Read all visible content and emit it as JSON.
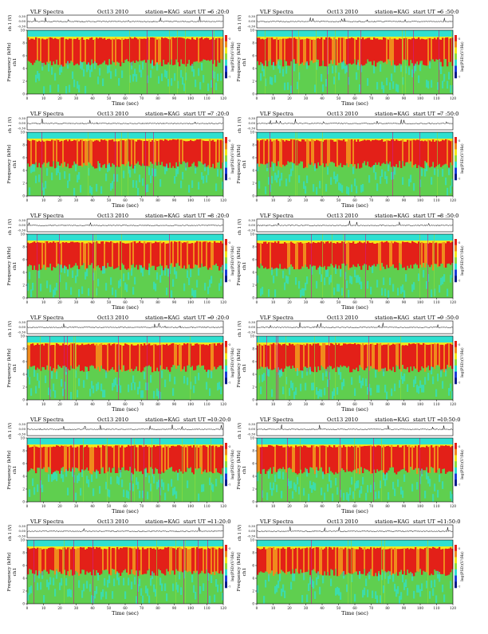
{
  "page": {
    "header_label": "VLF Spectra",
    "station_label": "station=KAG",
    "start_label": "start UT =",
    "voltage_axis_label": "ch 1 (V)",
    "freq_axis_label_line1": "ch1",
    "freq_axis_label_line2": "Frequency (kHz)",
    "time_axis_label": "Time (sec)",
    "colorbar_label": "log(PSD)(V²/Hz)",
    "voltage_ticks": [
      "0.30",
      "0.00",
      "-0.30"
    ],
    "freq_ticks": [
      "0",
      "2",
      "4",
      "6",
      "8",
      "10"
    ],
    "time_ticks": [
      "0",
      "10",
      "20",
      "30",
      "40",
      "50",
      "60",
      "70",
      "80",
      "90",
      "100",
      "110",
      "120"
    ],
    "colorbar_ticks": [
      "-5",
      "-7"
    ]
  },
  "chart_data": [
    {
      "type": "heatmap",
      "date": "Oct13 2010",
      "start_ut": "6 :20:0",
      "xlabel": "Time (sec)",
      "ylabel": "Frequency (kHz)",
      "xlim": [
        0,
        120
      ],
      "ylim": [
        0,
        10
      ],
      "upper_band_khz": [
        9.0,
        10.0
      ],
      "intense_band_khz": [
        5.5,
        8.5
      ]
    },
    {
      "type": "heatmap",
      "date": "Oct13 2010",
      "start_ut": "6 :50:0",
      "xlabel": "Time (sec)",
      "ylabel": "Frequency (kHz)",
      "xlim": [
        0,
        120
      ],
      "ylim": [
        0,
        10
      ],
      "upper_band_khz": [
        9.0,
        10.0
      ],
      "intense_band_khz": [
        5.5,
        8.5
      ]
    },
    {
      "type": "heatmap",
      "date": "Oct13 2010",
      "start_ut": "7 :20:0",
      "xlabel": "Time (sec)",
      "ylabel": "Frequency (kHz)",
      "xlim": [
        0,
        120
      ],
      "ylim": [
        0,
        10
      ],
      "upper_band_khz": [
        9.0,
        10.0
      ],
      "intense_band_khz": [
        5.5,
        8.5
      ]
    },
    {
      "type": "heatmap",
      "date": "Oct13 2010",
      "start_ut": "7 :50:0",
      "xlabel": "Time (sec)",
      "ylabel": "Frequency (kHz)",
      "xlim": [
        0,
        120
      ],
      "ylim": [
        0,
        10
      ],
      "upper_band_khz": [
        9.0,
        10.0
      ],
      "intense_band_khz": [
        5.5,
        8.5
      ]
    },
    {
      "type": "heatmap",
      "date": "Oct13 2010",
      "start_ut": "8 :20:0",
      "xlabel": "Time (sec)",
      "ylabel": "Frequency (kHz)",
      "xlim": [
        0,
        120
      ],
      "ylim": [
        0,
        10
      ],
      "upper_band_khz": [
        9.0,
        10.0
      ],
      "intense_band_khz": [
        5.5,
        8.5
      ]
    },
    {
      "type": "heatmap",
      "date": "Oct13 2010",
      "start_ut": "8 :50:0",
      "xlabel": "Time (sec)",
      "ylabel": "Frequency (kHz)",
      "xlim": [
        0,
        120
      ],
      "ylim": [
        0,
        10
      ],
      "upper_band_khz": [
        9.0,
        10.0
      ],
      "intense_band_khz": [
        5.5,
        8.5
      ]
    },
    {
      "type": "heatmap",
      "date": "Oct13 2010",
      "start_ut": "9 :20:0",
      "xlabel": "Time (sec)",
      "ylabel": "Frequency (kHz)",
      "xlim": [
        0,
        120
      ],
      "ylim": [
        0,
        10
      ],
      "upper_band_khz": [
        9.0,
        10.0
      ],
      "intense_band_khz": [
        5.5,
        8.5
      ]
    },
    {
      "type": "heatmap",
      "date": "Oct13 2010",
      "start_ut": "9 :50:0",
      "xlabel": "Time (sec)",
      "ylabel": "Frequency (kHz)",
      "xlim": [
        0,
        120
      ],
      "ylim": [
        0,
        10
      ],
      "upper_band_khz": [
        9.0,
        10.0
      ],
      "intense_band_khz": [
        5.5,
        8.5
      ]
    },
    {
      "type": "heatmap",
      "date": "Oct13 2010",
      "start_ut": "10:20:0",
      "xlabel": "Time (sec)",
      "ylabel": "Frequency (kHz)",
      "xlim": [
        0,
        120
      ],
      "ylim": [
        0,
        10
      ],
      "upper_band_khz": [
        9.0,
        10.0
      ],
      "intense_band_khz": [
        5.5,
        8.5
      ]
    },
    {
      "type": "heatmap",
      "date": "Oct13 2010",
      "start_ut": "10:50:0",
      "xlabel": "Time (sec)",
      "ylabel": "Frequency (kHz)",
      "xlim": [
        0,
        120
      ],
      "ylim": [
        0,
        10
      ],
      "upper_band_khz": [
        9.0,
        10.0
      ],
      "intense_band_khz": [
        5.5,
        8.5
      ]
    },
    {
      "type": "heatmap",
      "date": "Oct13 2010",
      "start_ut": "11:20:0",
      "xlabel": "Time (sec)",
      "ylabel": "Frequency (kHz)",
      "xlim": [
        0,
        120
      ],
      "ylim": [
        0,
        10
      ],
      "upper_band_khz": [
        9.0,
        10.0
      ],
      "intense_band_khz": [
        5.5,
        8.5
      ]
    },
    {
      "type": "heatmap",
      "date": "Oct13 2010",
      "start_ut": "11:50:0",
      "xlabel": "Time (sec)",
      "ylabel": "Frequency (kHz)",
      "xlim": [
        0,
        120
      ],
      "ylim": [
        0,
        10
      ],
      "upper_band_khz": [
        9.0,
        10.0
      ],
      "intense_band_khz": [
        5.5,
        8.5
      ]
    }
  ],
  "colors": {
    "red": "#e32018",
    "orange": "#f08a1c",
    "yellow": "#f2e81a",
    "green": "#5fcf4f",
    "lightgreen": "#8fdc3c",
    "cyan": "#2fe0d0",
    "blue": "#1a3cd8",
    "darkblue": "#0a1a8a",
    "magenta": "#d01a8a"
  }
}
